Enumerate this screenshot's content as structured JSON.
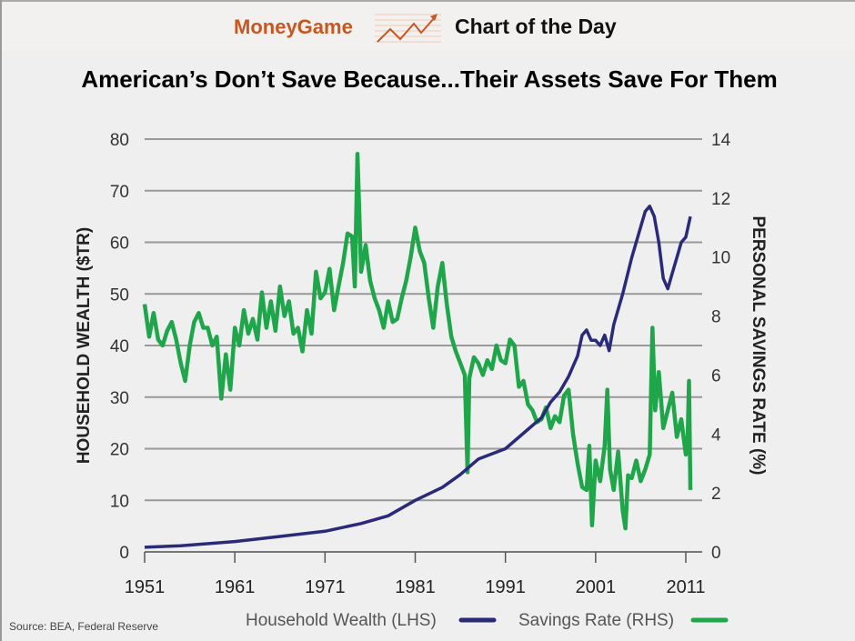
{
  "header": {
    "brand": "MoneyGame",
    "section": "Chart of the Day",
    "logo_icon": "rising-chart-arrow-icon"
  },
  "source": "Source: BEA, Federal Reserve",
  "chart_data": {
    "type": "line",
    "title": "American’s Don’t Save Because...Their Assets Save For Them",
    "xlabel": "",
    "ylabel_left": "HOUSEHOLD WEALTH ($TR)",
    "ylabel_right": "PERSONAL SAVINGS RATE (%)",
    "xlim": [
      1951,
      2012
    ],
    "ylim_left": [
      0,
      80
    ],
    "ylim_right": [
      0,
      14
    ],
    "x_ticks": [
      "1951",
      "1961",
      "1971",
      "1981",
      "1991",
      "2001",
      "2011"
    ],
    "y_ticks_left": [
      "0",
      "10",
      "20",
      "30",
      "40",
      "50",
      "60",
      "70",
      "80"
    ],
    "y_ticks_right": [
      "0",
      "2",
      "4",
      "6",
      "8",
      "10",
      "12",
      "14"
    ],
    "grid": true,
    "legend_position": "bottom",
    "series": [
      {
        "name": "Household Wealth (LHS)",
        "axis": "left",
        "color": "#2b2a7a",
        "points": [
          [
            1951,
            0.9
          ],
          [
            1955,
            1.2
          ],
          [
            1961,
            2
          ],
          [
            1966,
            3
          ],
          [
            1971,
            4
          ],
          [
            1975,
            5.5
          ],
          [
            1978,
            7
          ],
          [
            1981,
            10
          ],
          [
            1984,
            12.5
          ],
          [
            1986,
            15
          ],
          [
            1988,
            18
          ],
          [
            1991,
            20
          ],
          [
            1993,
            23
          ],
          [
            1995,
            26
          ],
          [
            1996,
            29
          ],
          [
            1997,
            31
          ],
          [
            1998,
            34
          ],
          [
            1999,
            38
          ],
          [
            1999.5,
            42
          ],
          [
            2000,
            43
          ],
          [
            2000.5,
            41
          ],
          [
            2001,
            41
          ],
          [
            2001.5,
            40
          ],
          [
            2002,
            42
          ],
          [
            2002.5,
            39
          ],
          [
            2003,
            44
          ],
          [
            2004,
            50
          ],
          [
            2005,
            57
          ],
          [
            2006,
            63
          ],
          [
            2006.5,
            66
          ],
          [
            2007,
            67
          ],
          [
            2007.5,
            65
          ],
          [
            2008,
            60
          ],
          [
            2008.5,
            53
          ],
          [
            2009,
            51
          ],
          [
            2009.5,
            54
          ],
          [
            2010,
            57
          ],
          [
            2010.5,
            60
          ],
          [
            2011,
            61
          ],
          [
            2011.5,
            65
          ]
        ]
      },
      {
        "name": "Savings Rate (RHS)",
        "axis": "right",
        "color": "#1fa64a",
        "points": [
          [
            1951,
            8.4
          ],
          [
            1951.5,
            7.3
          ],
          [
            1952,
            8.1
          ],
          [
            1952.5,
            7.2
          ],
          [
            1953,
            7.0
          ],
          [
            1953.5,
            7.5
          ],
          [
            1954,
            7.8
          ],
          [
            1954.5,
            7.2
          ],
          [
            1955,
            6.4
          ],
          [
            1955.5,
            5.8
          ],
          [
            1956,
            7.0
          ],
          [
            1956.5,
            7.8
          ],
          [
            1957,
            8.1
          ],
          [
            1957.5,
            7.6
          ],
          [
            1958,
            7.6
          ],
          [
            1958.5,
            7.0
          ],
          [
            1959,
            7.3
          ],
          [
            1959.5,
            5.2
          ],
          [
            1960,
            6.7
          ],
          [
            1960.5,
            5.5
          ],
          [
            1961,
            7.6
          ],
          [
            1961.5,
            7.0
          ],
          [
            1962,
            8.2
          ],
          [
            1962.5,
            7.4
          ],
          [
            1963,
            7.9
          ],
          [
            1963.5,
            7.2
          ],
          [
            1964,
            8.8
          ],
          [
            1964.5,
            7.6
          ],
          [
            1965,
            8.5
          ],
          [
            1965.5,
            7.5
          ],
          [
            1966,
            9.0
          ],
          [
            1966.5,
            8.0
          ],
          [
            1967,
            8.5
          ],
          [
            1967.5,
            7.4
          ],
          [
            1968,
            7.6
          ],
          [
            1968.5,
            6.8
          ],
          [
            1969,
            8.2
          ],
          [
            1969.5,
            7.4
          ],
          [
            1970,
            9.5
          ],
          [
            1970.5,
            8.6
          ],
          [
            1971,
            8.8
          ],
          [
            1971.5,
            9.6
          ],
          [
            1972,
            8.2
          ],
          [
            1972.5,
            9.0
          ],
          [
            1973,
            9.8
          ],
          [
            1973.5,
            10.8
          ],
          [
            1974,
            10.7
          ],
          [
            1974.3,
            9.0
          ],
          [
            1974.6,
            13.5
          ],
          [
            1975,
            9.5
          ],
          [
            1975.5,
            10.4
          ],
          [
            1976,
            9.2
          ],
          [
            1976.5,
            8.6
          ],
          [
            1977,
            8.2
          ],
          [
            1977.5,
            7.6
          ],
          [
            1978,
            8.5
          ],
          [
            1978.5,
            7.8
          ],
          [
            1979,
            7.9
          ],
          [
            1979.5,
            8.6
          ],
          [
            1980,
            9.2
          ],
          [
            1980.5,
            10.0
          ],
          [
            1981,
            11.0
          ],
          [
            1981.5,
            10.2
          ],
          [
            1982,
            9.8
          ],
          [
            1982.5,
            8.6
          ],
          [
            1983,
            7.6
          ],
          [
            1983.5,
            9.0
          ],
          [
            1984,
            9.8
          ],
          [
            1984.5,
            8.4
          ],
          [
            1985,
            7.3
          ],
          [
            1985.5,
            6.8
          ],
          [
            1986,
            6.4
          ],
          [
            1986.5,
            6.0
          ],
          [
            1986.8,
            2.7
          ],
          [
            1987,
            5.9
          ],
          [
            1987.5,
            6.6
          ],
          [
            1988,
            6.4
          ],
          [
            1988.5,
            6.0
          ],
          [
            1989,
            6.5
          ],
          [
            1989.5,
            6.2
          ],
          [
            1990,
            7.0
          ],
          [
            1990.5,
            6.5
          ],
          [
            1991,
            6.4
          ],
          [
            1991.5,
            7.2
          ],
          [
            1992,
            7.0
          ],
          [
            1992.5,
            5.6
          ],
          [
            1993,
            5.8
          ],
          [
            1993.5,
            5.0
          ],
          [
            1994,
            4.8
          ],
          [
            1994.5,
            4.4
          ],
          [
            1995,
            4.5
          ],
          [
            1995.5,
            4.9
          ],
          [
            1996,
            4.2
          ],
          [
            1996.5,
            4.6
          ],
          [
            1997,
            4.4
          ],
          [
            1997.5,
            5.3
          ],
          [
            1998,
            5.5
          ],
          [
            1998.5,
            4.0
          ],
          [
            1999,
            3.0
          ],
          [
            1999.5,
            2.2
          ],
          [
            2000,
            2.1
          ],
          [
            2000.3,
            3.6
          ],
          [
            2000.6,
            0.9
          ],
          [
            2001,
            3.1
          ],
          [
            2001.5,
            2.4
          ],
          [
            2002,
            3.6
          ],
          [
            2002.3,
            5.5
          ],
          [
            2002.6,
            2.8
          ],
          [
            2003,
            2.1
          ],
          [
            2003.5,
            3.4
          ],
          [
            2004,
            1.4
          ],
          [
            2004.3,
            0.8
          ],
          [
            2004.6,
            2.6
          ],
          [
            2005,
            2.5
          ],
          [
            2005.5,
            3.1
          ],
          [
            2006,
            2.4
          ],
          [
            2006.5,
            2.8
          ],
          [
            2007,
            3.3
          ],
          [
            2007.3,
            7.6
          ],
          [
            2007.6,
            4.8
          ],
          [
            2008,
            6.1
          ],
          [
            2008.5,
            4.2
          ],
          [
            2009,
            4.8
          ],
          [
            2009.5,
            5.4
          ],
          [
            2010,
            3.9
          ],
          [
            2010.5,
            4.5
          ],
          [
            2011,
            3.3
          ],
          [
            2011.2,
            3.8
          ],
          [
            2011.35,
            5.8
          ],
          [
            2011.5,
            2.1
          ]
        ]
      }
    ]
  }
}
